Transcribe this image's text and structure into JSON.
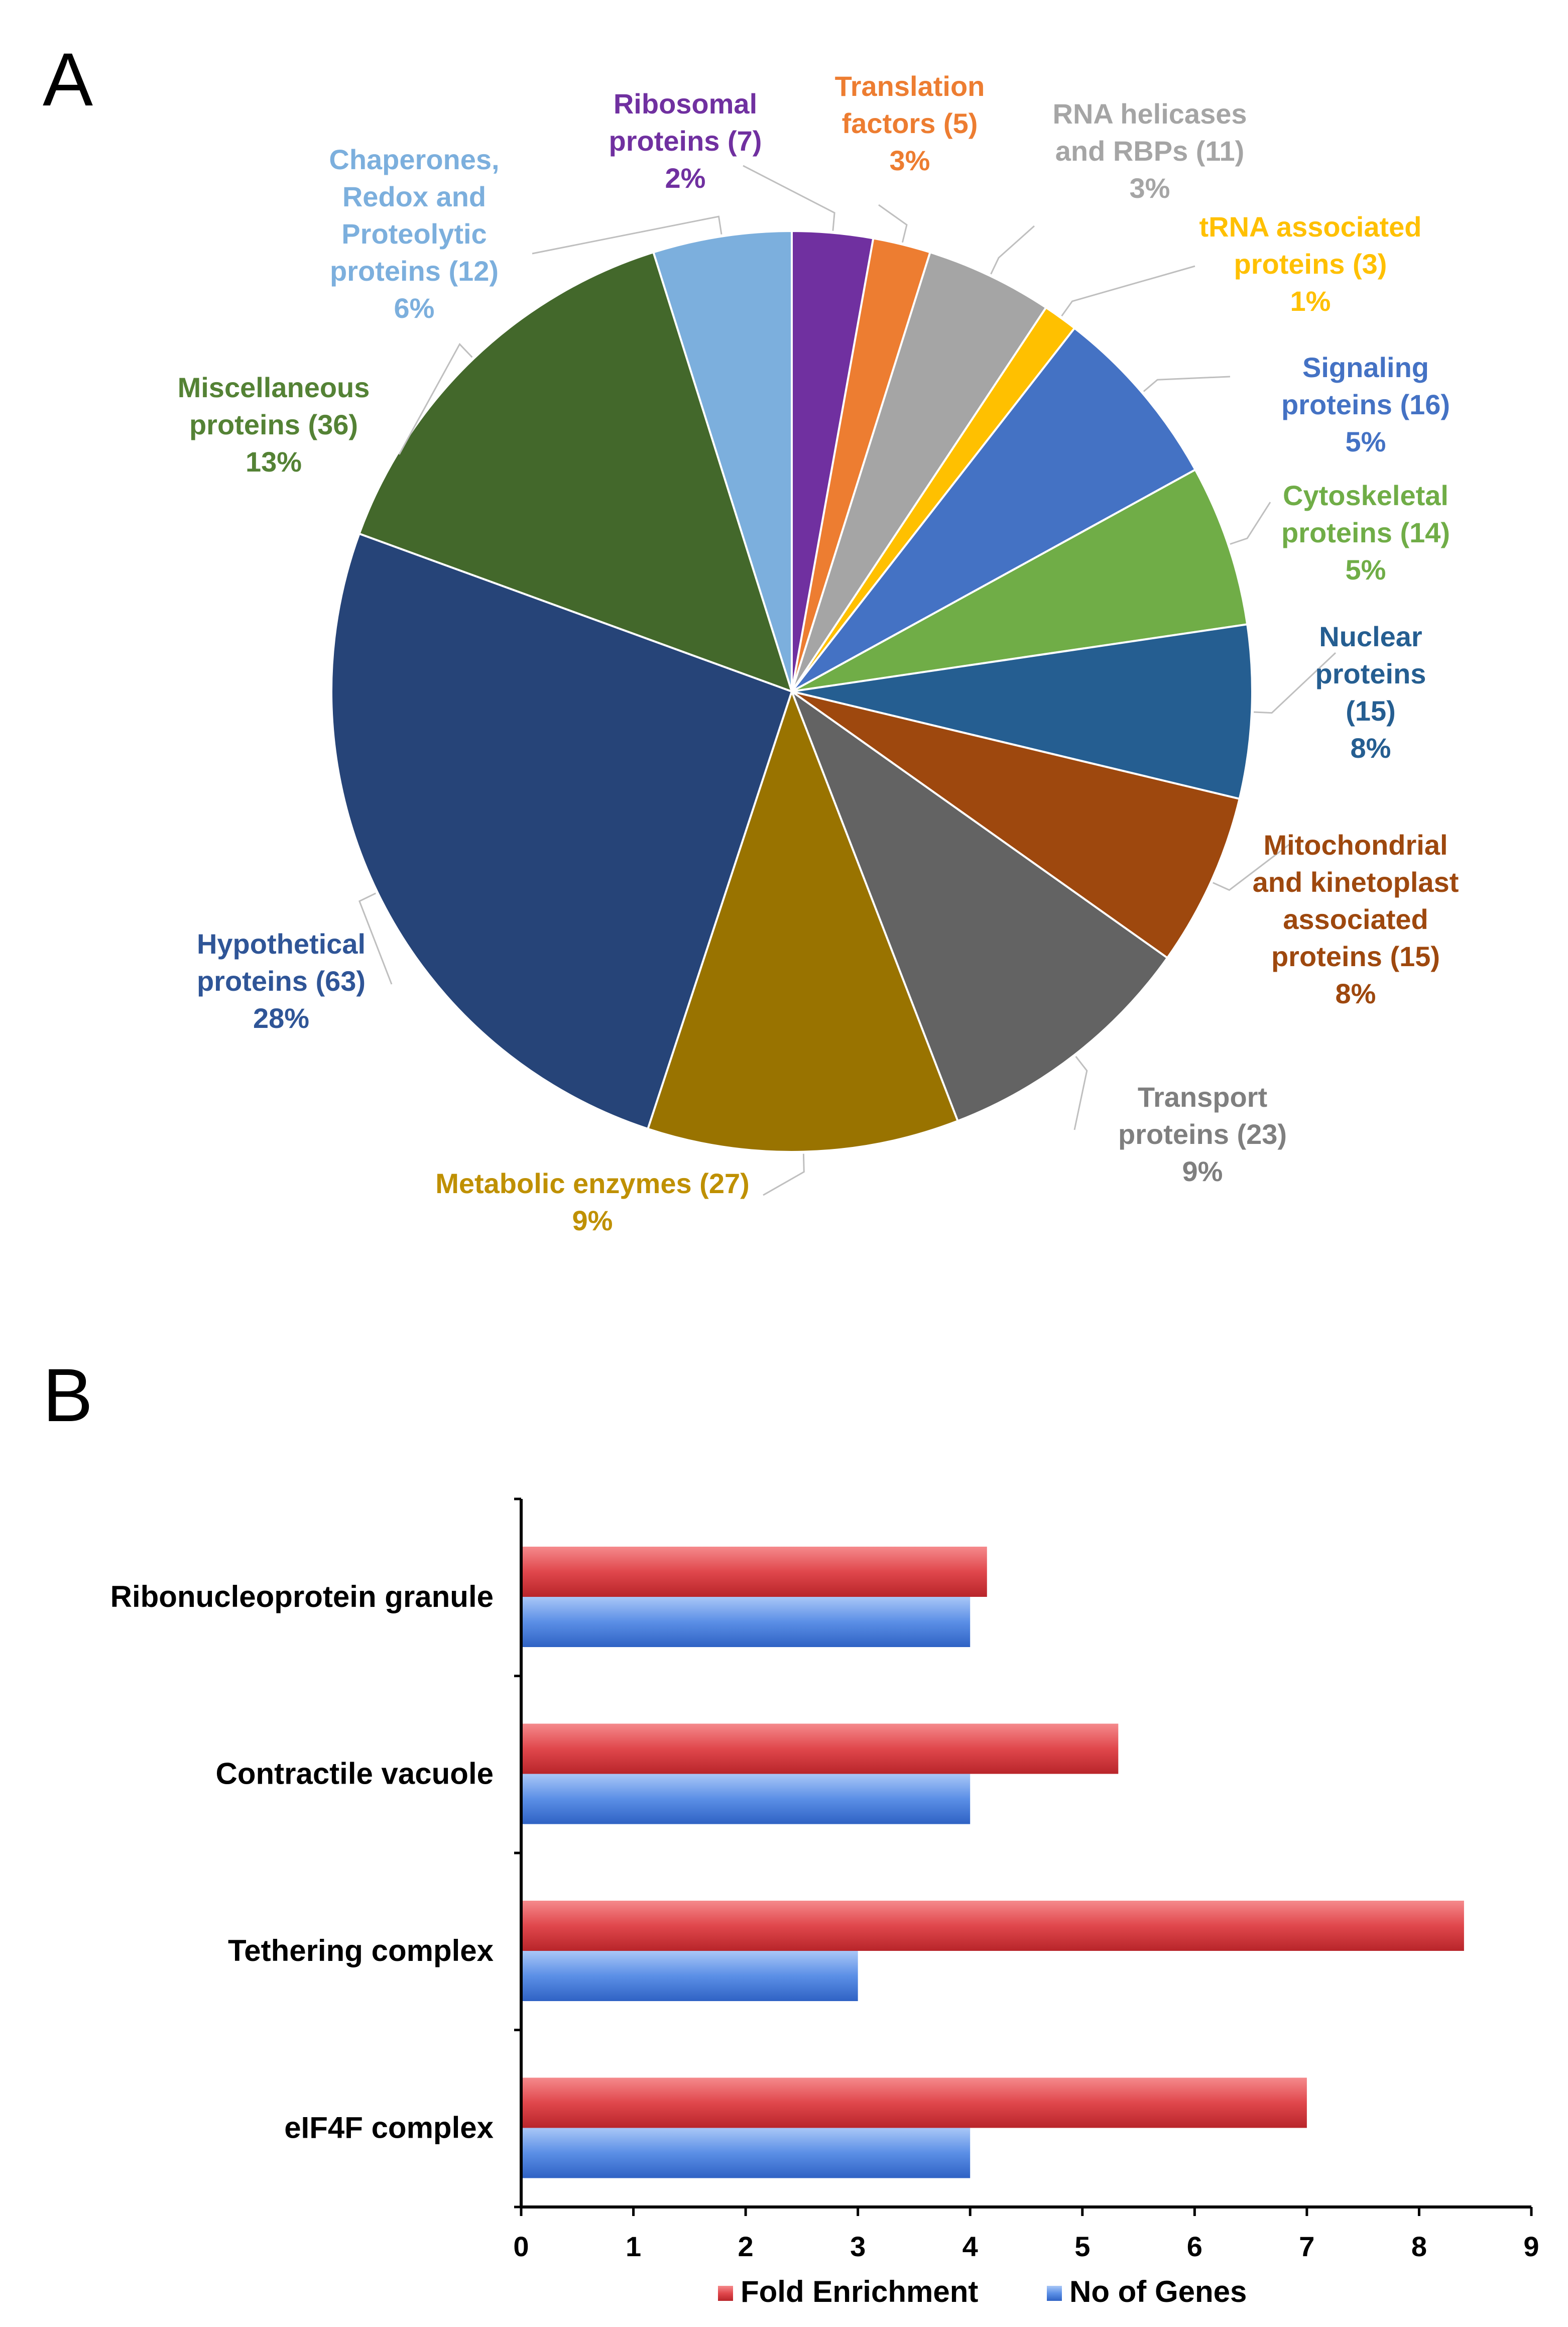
{
  "panels": {
    "a_letter": "A",
    "b_letter": "B"
  },
  "chart_data": [
    {
      "type": "pie",
      "panel": "A",
      "slices": [
        {
          "label": [
            "Ribosomal",
            "proteins (7)",
            "2%"
          ],
          "value": 7,
          "percent": "2%",
          "color": "#7030a0"
        },
        {
          "label": [
            "Translation",
            "factors (5)",
            "3%"
          ],
          "value": 5,
          "percent": "3%",
          "color": "#ed7d31"
        },
        {
          "label": [
            "RNA helicases",
            "and RBPs (11)",
            "3%"
          ],
          "value": 11,
          "percent": "3%",
          "color": "#a5a5a5"
        },
        {
          "label": [
            "tRNA associated",
            "proteins (3)",
            "1%"
          ],
          "value": 3,
          "percent": "1%",
          "color": "#ffc000"
        },
        {
          "label": [
            "Signaling",
            "proteins (16)",
            "5%"
          ],
          "value": 16,
          "percent": "5%",
          "color": "#4472c4"
        },
        {
          "label": [
            "Cytoskeletal",
            "proteins (14)",
            "5%"
          ],
          "value": 14,
          "percent": "5%",
          "color": "#70ad47"
        },
        {
          "label": [
            "Nuclear",
            "proteins",
            "(15)",
            "8%"
          ],
          "value": 15,
          "percent": "8%",
          "color": "#255e91"
        },
        {
          "label": [
            "Mitochondrial",
            "and kinetoplast",
            "associated",
            "proteins (15)",
            "8%"
          ],
          "value": 15,
          "percent": "8%",
          "color": "#9e480e"
        },
        {
          "label": [
            "Transport",
            "proteins (23)",
            "9%"
          ],
          "value": 23,
          "percent": "9%",
          "color": "#636363"
        },
        {
          "label": [
            "Metabolic enzymes (27)",
            "9%"
          ],
          "value": 27,
          "percent": "9%",
          "color": "#997300"
        },
        {
          "label": [
            "Hypothetical",
            "proteins (63)",
            "28%"
          ],
          "value": 63,
          "percent": "28%",
          "color": "#264478"
        },
        {
          "label": [
            "Miscellaneous",
            "proteins (36)",
            "13%"
          ],
          "value": 36,
          "percent": "13%",
          "color": "#43682b"
        },
        {
          "label": [
            "Chaperones,",
            "Redox and",
            "Proteolytic",
            "proteins (12)",
            "6%"
          ],
          "value": 12,
          "percent": "6%",
          "color": "#7cafdd"
        }
      ]
    },
    {
      "type": "bar",
      "panel": "B",
      "orientation": "horizontal",
      "categories": [
        "Ribonucleoprotein granule",
        "Contractile vacuole",
        "Tethering complex",
        "eIF4F complex"
      ],
      "series": [
        {
          "name": "Fold Enrichment",
          "values": [
            4.15,
            5.32,
            8.4,
            7.0
          ],
          "color": "#e0474c"
        },
        {
          "name": "No of Genes",
          "values": [
            4,
            4,
            3,
            4
          ],
          "color": "#5b8fe6"
        }
      ],
      "xlim": [
        0,
        9
      ],
      "xticks": [
        "0",
        "1",
        "2",
        "3",
        "4",
        "5",
        "6",
        "7",
        "8",
        "9"
      ],
      "legend": [
        "Fold Enrichment",
        "No of Genes"
      ]
    }
  ]
}
